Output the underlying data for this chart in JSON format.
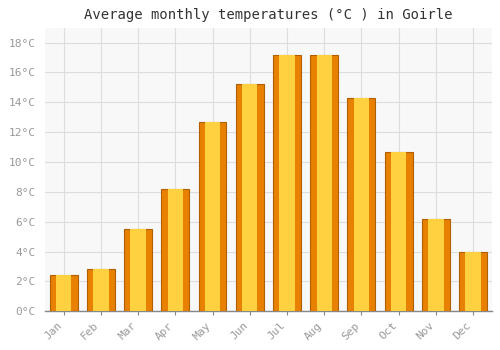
{
  "title": "Average monthly temperatures (°C ) in Goirle",
  "months": [
    "Jan",
    "Feb",
    "Mar",
    "Apr",
    "May",
    "Jun",
    "Jul",
    "Aug",
    "Sep",
    "Oct",
    "Nov",
    "Dec"
  ],
  "temperatures": [
    2.4,
    2.8,
    5.5,
    8.2,
    12.7,
    15.2,
    17.2,
    17.2,
    14.3,
    10.7,
    6.2,
    4.0
  ],
  "bar_color_center": "#FFD040",
  "bar_color_edge": "#E88000",
  "bar_edge_color": "#B06000",
  "background_color": "#FFFFFF",
  "plot_bg_color": "#F8F8F8",
  "grid_color": "#DDDDDD",
  "ylim": [
    0,
    19
  ],
  "yticks": [
    0,
    2,
    4,
    6,
    8,
    10,
    12,
    14,
    16,
    18
  ],
  "title_fontsize": 10,
  "tick_fontsize": 8,
  "tick_color": "#999999",
  "title_color": "#333333",
  "font_family": "monospace",
  "bar_width": 0.75
}
